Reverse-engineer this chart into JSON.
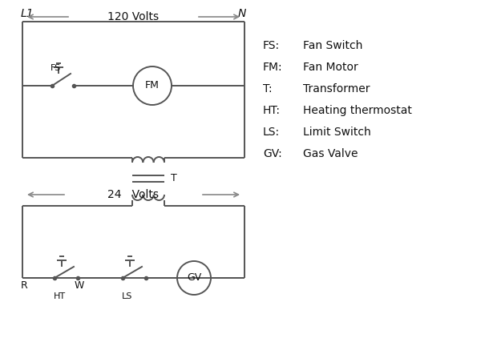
{
  "bg_color": "#ffffff",
  "line_color": "#555555",
  "arrow_color": "#888888",
  "text_color": "#111111",
  "legend_items": [
    [
      "FS:",
      "Fan Switch"
    ],
    [
      "FM:",
      "Fan Motor"
    ],
    [
      "T:",
      "Transformer"
    ],
    [
      "HT:",
      "Heating thermostat"
    ],
    [
      "LS:",
      "Limit Switch"
    ],
    [
      "GV:",
      "Gas Valve"
    ]
  ],
  "L1_label": "L1",
  "N_label": "N",
  "volts120_label": "120 Volts",
  "volts24_label": "24   Volts",
  "fs_label": "FS",
  "fm_label": "FM",
  "t_label": "T",
  "r_label": "R",
  "w_label": "W",
  "ht_label": "HT",
  "ls_label": "LS",
  "gv_label": "GV"
}
